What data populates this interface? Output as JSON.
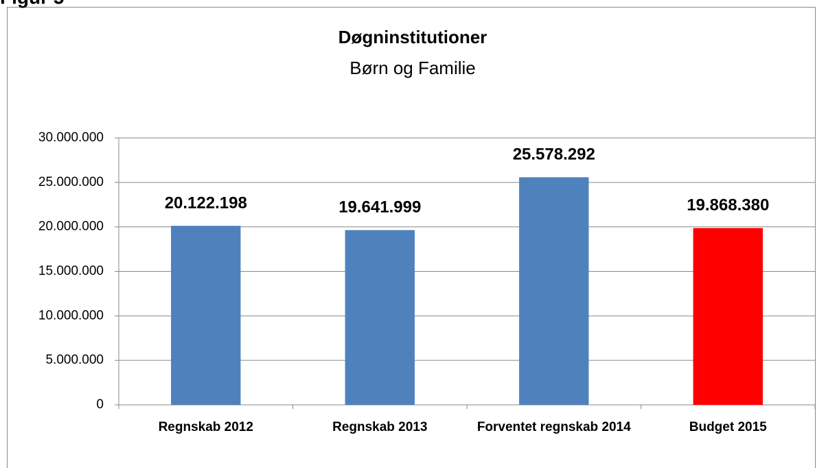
{
  "figure_label": "Figur 5",
  "chart_data": {
    "type": "bar",
    "title": "Døgninstitutioner",
    "subtitle": "Børn og Familie",
    "categories": [
      "Regnskab 2012",
      "Regnskab 2013",
      "Forventet regnskab 2014",
      "Budget 2015"
    ],
    "values": [
      20122198,
      19641999,
      25578292,
      19868380
    ],
    "value_labels": [
      "20.122.198",
      "19.641.999",
      "25.578.292",
      "19.868.380"
    ],
    "colors": [
      "#4f81bd",
      "#4f81bd",
      "#4f81bd",
      "#ff0000"
    ],
    "ylim": [
      0,
      30000000
    ],
    "yticks": [
      0,
      {
        "value": 5000000,
        "label": "5.000.000"
      },
      {
        "value": 10000000,
        "label": "10.000.000"
      },
      {
        "value": 15000000,
        "label": "15.000.000"
      },
      {
        "value": 20000000,
        "label": "20.000.000"
      },
      {
        "value": 25000000,
        "label": "25.000.000"
      },
      {
        "value": 30000000,
        "label": "30.000.000"
      }
    ],
    "grid": true
  }
}
